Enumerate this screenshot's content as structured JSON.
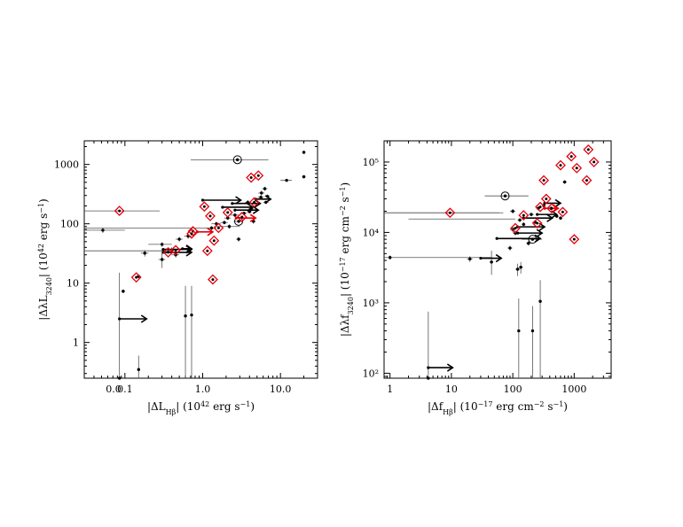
{
  "chart_data": [
    {
      "type": "scatter",
      "xscale": "log",
      "yscale": "log",
      "xlim": [
        0.03,
        30
      ],
      "ylim": [
        0.25,
        2500
      ],
      "xlabel": "|ΔL_Hβ| (10^42 erg s^-1)",
      "ylabel": "|ΔλL_3240| (10^42 erg s^-1)",
      "xticks": [
        {
          "v": 0.1,
          "label": "0.1"
        },
        {
          "v": 1,
          "label": "1.0"
        },
        {
          "v": 10,
          "label": "10.0"
        }
      ],
      "xticks_extra_label": "0.0",
      "yticks": [
        {
          "v": 1,
          "label": "1"
        },
        {
          "v": 10,
          "label": "10"
        },
        {
          "v": 100,
          "label": "100"
        },
        {
          "v": 1000,
          "label": "1000"
        }
      ],
      "colors": {
        "black": "#000000",
        "red": "#e8000b"
      },
      "points": [
        {
          "x": 20,
          "y": 1600,
          "xe": [
            19,
            21
          ],
          "ye": [
            1500,
            1700
          ]
        },
        {
          "x": 20,
          "y": 620,
          "xe": [
            19,
            21
          ],
          "ye": [
            580,
            660
          ]
        },
        {
          "x": 12,
          "y": 540,
          "xe": [
            10,
            14
          ],
          "ye": [
            510,
            570
          ]
        },
        {
          "x": 6.3,
          "y": 390,
          "xe": [
            5.8,
            6.8
          ],
          "ye": [
            360,
            420
          ]
        },
        {
          "x": 5.7,
          "y": 330,
          "xe": [
            5.2,
            6.2
          ],
          "ye": [
            300,
            360
          ]
        },
        {
          "x": 5.6,
          "y": 280,
          "xe": [
            5.1,
            6.1
          ],
          "ye": [
            260,
            300
          ]
        },
        {
          "x": 6.8,
          "y": 290,
          "xe": [
            6.3,
            7.3
          ],
          "ye": [
            270,
            310
          ]
        },
        {
          "x": 6.5,
          "y": 230,
          "xe": [
            6.0,
            7.0
          ],
          "ye": [
            215,
            245
          ]
        },
        {
          "x": 4.0,
          "y": 160,
          "xe": [
            3.7,
            4.3
          ],
          "ye": [
            150,
            170
          ]
        },
        {
          "x": 3.4,
          "y": 150,
          "xe": [
            3.1,
            3.7
          ],
          "ye": [
            140,
            160
          ]
        },
        {
          "x": 2.6,
          "y": 140,
          "xe": [
            2.3,
            2.9
          ],
          "ye": [
            130,
            150
          ]
        },
        {
          "x": 2.1,
          "y": 125,
          "xe": [
            1.9,
            2.3
          ],
          "ye": [
            116,
            134
          ]
        },
        {
          "x": 1.9,
          "y": 105,
          "xe": [
            1.7,
            2.1
          ],
          "ye": [
            98,
            112
          ]
        },
        {
          "x": 2.2,
          "y": 90,
          "xe": [
            1.4,
            3.0
          ],
          "ye": [
            82,
            98
          ]
        },
        {
          "x": 1.5,
          "y": 100,
          "xe": [
            1.3,
            1.7
          ],
          "ye": [
            92,
            108
          ]
        },
        {
          "x": 1.3,
          "y": 85,
          "xe": [
            1.1,
            1.5
          ],
          "ye": [
            78,
            92
          ]
        },
        {
          "x": 0.5,
          "y": 55,
          "xe": [
            0.45,
            0.55
          ],
          "ye": [
            50,
            60
          ]
        },
        {
          "x": 0.65,
          "y": 62,
          "xe": [
            0.58,
            0.72
          ],
          "ye": [
            56,
            68
          ]
        },
        {
          "x": 0.3,
          "y": 45,
          "xe": [
            0.2,
            0.4
          ],
          "ye": [
            41,
            49
          ]
        },
        {
          "x": 0.4,
          "y": 36,
          "xe": [
            0.35,
            0.45
          ],
          "ye": [
            32,
            40
          ]
        },
        {
          "x": 0.45,
          "y": 30,
          "xe": [
            0.4,
            0.5
          ],
          "ye": [
            27,
            33
          ]
        },
        {
          "x": 0.3,
          "y": 25,
          "xe": [
            0.27,
            0.33
          ],
          "ye": [
            18,
            32
          ]
        },
        {
          "x": 0.052,
          "y": 78,
          "xe": [
            0.048,
            0.056
          ],
          "ye": [
            70,
            86
          ]
        },
        {
          "x": 0.18,
          "y": 32,
          "xe": [
            0.16,
            0.2
          ],
          "ye": [
            28,
            36
          ]
        },
        {
          "x": 0.095,
          "y": 7.3,
          "xe": [
            0.09,
            0.1
          ],
          "ye": [
            6.8,
            7.8
          ]
        },
        {
          "x": 0.15,
          "y": 13,
          "xe": [
            0.14,
            0.16
          ],
          "ye": [
            12,
            14
          ]
        },
        {
          "x": 0.6,
          "y": 2.8,
          "xe": [
            0.58,
            0.62
          ],
          "ye": [
            0.25,
            9
          ]
        },
        {
          "x": 0.72,
          "y": 2.9,
          "xe": [
            0.7,
            0.74
          ],
          "ye": [
            0.25,
            9
          ]
        },
        {
          "x": 0.085,
          "y": 0.25,
          "xe": [
            0.085,
            0.085
          ],
          "ye": [
            0.25,
            15
          ]
        },
        {
          "x": 0.15,
          "y": 0.35,
          "xe": [
            0.145,
            0.155
          ],
          "ye": [
            0.25,
            0.6
          ]
        },
        {
          "x": 2.9,
          "y": 55,
          "xe": [
            2.7,
            3.1
          ],
          "ye": [
            50,
            60
          ]
        },
        {
          "x": 4.5,
          "y": 110,
          "xe": [
            4.2,
            4.8
          ],
          "ye": [
            100,
            120
          ]
        },
        {
          "x": 3.8,
          "y": 230,
          "xe": [
            3.5,
            4.1
          ],
          "ye": [
            210,
            250
          ]
        },
        {
          "x": 4.2,
          "y": 180,
          "xe": [
            3.9,
            4.5
          ],
          "ye": [
            165,
            195
          ]
        }
      ],
      "circled": [
        {
          "x": 2.8,
          "y": 1200,
          "xe": [
            0.7,
            7.0
          ],
          "ye": [
            1150,
            1250
          ]
        },
        {
          "x": 2.9,
          "y": 110,
          "xe": [
            2.5,
            3.3
          ],
          "ye": [
            100,
            120
          ]
        }
      ],
      "arrows": [
        {
          "x": 0.085,
          "y": 2.5,
          "to": 0.19,
          "color": "black"
        },
        {
          "x": 0.31,
          "y": 33,
          "to": 0.72,
          "color": "black"
        },
        {
          "x": 0.55,
          "y": 38,
          "to": 0.72,
          "color": "black"
        },
        {
          "x": 0.31,
          "y": 37,
          "to": 0.72,
          "color": "black"
        },
        {
          "x": 1.0,
          "y": 250,
          "to": 3.1,
          "color": "black"
        },
        {
          "x": 4.8,
          "y": 260,
          "to": 7.5,
          "color": "black"
        },
        {
          "x": 2.4,
          "y": 220,
          "to": 5.5,
          "color": "black"
        },
        {
          "x": 1.8,
          "y": 190,
          "to": 4.4,
          "color": "black"
        },
        {
          "x": 2.6,
          "y": 170,
          "to": 5.2,
          "color": "black"
        },
        {
          "x": 2.7,
          "y": 125,
          "to": 4.8,
          "color": "red"
        },
        {
          "x": 0.85,
          "y": 73,
          "to": 1.35,
          "color": "red"
        }
      ],
      "hlines": [
        {
          "x1": 0.03,
          "x2": 0.1,
          "y": 78
        },
        {
          "x1": 0.03,
          "x2": 0.4,
          "y": 35
        },
        {
          "x1": 0.03,
          "x2": 1.5,
          "y": 85
        }
      ],
      "red_diamonds": [
        {
          "x": 0.085,
          "y": 165,
          "xe": [
            0.03,
            0.28
          ]
        },
        {
          "x": 0.14,
          "y": 12.5
        },
        {
          "x": 0.36,
          "y": 33
        },
        {
          "x": 0.45,
          "y": 36
        },
        {
          "x": 0.75,
          "y": 75
        },
        {
          "x": 0.72,
          "y": 68
        },
        {
          "x": 1.05,
          "y": 195
        },
        {
          "x": 1.25,
          "y": 135
        },
        {
          "x": 1.4,
          "y": 52
        },
        {
          "x": 1.15,
          "y": 35
        },
        {
          "x": 1.35,
          "y": 11.5
        },
        {
          "x": 1.6,
          "y": 85
        },
        {
          "x": 2.1,
          "y": 155
        },
        {
          "x": 3.2,
          "y": 130
        },
        {
          "x": 4.6,
          "y": 230
        },
        {
          "x": 4.2,
          "y": 600
        },
        {
          "x": 5.2,
          "y": 650
        }
      ]
    },
    {
      "type": "scatter",
      "xscale": "log",
      "yscale": "log",
      "xlim": [
        0.8,
        4000
      ],
      "ylim": [
        85,
        200000
      ],
      "xlabel": "|Δf_Hβ| (10^-17 erg cm^-2 s^-1)",
      "ylabel": "|Δλf_3240| (10^-17 erg cm^-2 s^-1)",
      "xticks": [
        {
          "v": 1,
          "label": "1"
        },
        {
          "v": 10,
          "label": "10"
        },
        {
          "v": 100,
          "label": "100"
        },
        {
          "v": 1000,
          "label": "1000"
        }
      ],
      "yticks": [
        {
          "v": 100,
          "label": "10²"
        },
        {
          "v": 1000,
          "label": "10³"
        },
        {
          "v": 10000,
          "label": "10⁴"
        },
        {
          "v": 100000,
          "label": "10⁵"
        }
      ],
      "colors": {
        "black": "#000000",
        "red": "#e8000b"
      },
      "points": [
        {
          "x": 1.0,
          "y": 4400,
          "xe": [
            0.95,
            1.05
          ],
          "ye": [
            4100,
            4700
          ]
        },
        {
          "x": 20,
          "y": 4200,
          "xe": [
            18,
            22
          ],
          "ye": [
            3800,
            4600
          ]
        },
        {
          "x": 45,
          "y": 3800,
          "xe": [
            42,
            48
          ],
          "ye": [
            2500,
            5500
          ]
        },
        {
          "x": 120,
          "y": 3000,
          "xe": [
            110,
            130
          ],
          "ye": [
            2400,
            3600
          ]
        },
        {
          "x": 135,
          "y": 3200,
          "xe": [
            125,
            145
          ],
          "ye": [
            2600,
            3800
          ]
        },
        {
          "x": 125,
          "y": 400,
          "xe": [
            123,
            127
          ],
          "ye": [
            85,
            1150
          ]
        },
        {
          "x": 210,
          "y": 400,
          "xe": [
            208,
            212
          ],
          "ye": [
            85,
            900
          ]
        },
        {
          "x": 280,
          "y": 1050,
          "xe": [
            270,
            290
          ],
          "ye": [
            85,
            2100
          ]
        },
        {
          "x": 4.2,
          "y": 85,
          "xe": [
            4.2,
            4.2
          ],
          "ye": [
            85,
            750
          ]
        },
        {
          "x": 100,
          "y": 11000,
          "xe": [
            90,
            110
          ],
          "ye": [
            10000,
            12000
          ]
        },
        {
          "x": 110,
          "y": 9800,
          "xe": [
            100,
            120
          ],
          "ye": [
            9000,
            10600
          ]
        },
        {
          "x": 130,
          "y": 15000,
          "xe": [
            120,
            140
          ],
          "ye": [
            14000,
            16000
          ]
        },
        {
          "x": 150,
          "y": 13000,
          "xe": [
            140,
            160
          ],
          "ye": [
            12000,
            14000
          ]
        },
        {
          "x": 200,
          "y": 18000,
          "xe": [
            180,
            220
          ],
          "ye": [
            17000,
            19000
          ]
        },
        {
          "x": 260,
          "y": 22000,
          "xe": [
            240,
            280
          ],
          "ye": [
            20500,
            23500
          ]
        },
        {
          "x": 320,
          "y": 24000,
          "xe": [
            300,
            340
          ],
          "ye": [
            22500,
            25500
          ]
        },
        {
          "x": 420,
          "y": 22000,
          "xe": [
            390,
            450
          ],
          "ye": [
            20500,
            23500
          ]
        },
        {
          "x": 520,
          "y": 17000,
          "xe": [
            480,
            560
          ],
          "ye": [
            16000,
            18000
          ]
        },
        {
          "x": 700,
          "y": 52000,
          "xe": [
            650,
            750
          ],
          "ye": [
            49000,
            55000
          ]
        },
        {
          "x": 600,
          "y": 16000,
          "xe": [
            560,
            640
          ],
          "ye": [
            15000,
            17000
          ]
        },
        {
          "x": 180,
          "y": 7000,
          "xe": [
            165,
            195
          ],
          "ye": [
            6500,
            7500
          ]
        },
        {
          "x": 90,
          "y": 6000,
          "xe": [
            82,
            98
          ],
          "ye": [
            5500,
            6500
          ]
        },
        {
          "x": 100,
          "y": 20000,
          "xe": [
            90,
            110
          ],
          "ye": [
            18500,
            21500
          ]
        },
        {
          "x": 230,
          "y": 14000,
          "xe": [
            210,
            250
          ],
          "ye": [
            13000,
            15000
          ]
        }
      ],
      "circled": [
        {
          "x": 75,
          "y": 33000,
          "xe": [
            35,
            180
          ],
          "ye": [
            31500,
            34500
          ]
        },
        {
          "x": 210,
          "y": 8000,
          "xe": [
            140,
            300
          ],
          "ye": [
            7600,
            8400
          ]
        }
      ],
      "arrows": [
        {
          "x": 4.2,
          "y": 120,
          "to": 10.5,
          "color": "black"
        },
        {
          "x": 30,
          "y": 4300,
          "to": 65,
          "color": "black"
        },
        {
          "x": 55,
          "y": 8200,
          "to": 280,
          "color": "black"
        },
        {
          "x": 120,
          "y": 9800,
          "to": 300,
          "color": "black"
        },
        {
          "x": 120,
          "y": 12000,
          "to": 330,
          "color": "black"
        },
        {
          "x": 150,
          "y": 16000,
          "to": 440,
          "color": "black"
        },
        {
          "x": 250,
          "y": 18000,
          "to": 520,
          "color": "black"
        },
        {
          "x": 330,
          "y": 26000,
          "to": 600,
          "color": "black"
        },
        {
          "x": 330,
          "y": 22000,
          "to": 550,
          "color": "red"
        }
      ],
      "hlines": [
        {
          "x1": 0.8,
          "x2": 45,
          "y": 4400
        },
        {
          "x1": 0.8,
          "x2": 60,
          "y": 19000
        },
        {
          "x1": 2,
          "x2": 110,
          "y": 15500
        }
      ],
      "red_diamonds": [
        {
          "x": 9.5,
          "y": 19000,
          "xe": [
            0.8,
            70
          ]
        },
        {
          "x": 110,
          "y": 11500
        },
        {
          "x": 150,
          "y": 17500
        },
        {
          "x": 250,
          "y": 13500
        },
        {
          "x": 280,
          "y": 23000
        },
        {
          "x": 320,
          "y": 55000
        },
        {
          "x": 350,
          "y": 30000
        },
        {
          "x": 430,
          "y": 22000
        },
        {
          "x": 600,
          "y": 90000
        },
        {
          "x": 650,
          "y": 19500
        },
        {
          "x": 900,
          "y": 120000
        },
        {
          "x": 1100,
          "y": 82000
        },
        {
          "x": 1600,
          "y": 55000
        },
        {
          "x": 1700,
          "y": 150000
        },
        {
          "x": 2100,
          "y": 100000
        },
        {
          "x": 1000,
          "y": 8000
        }
      ]
    }
  ]
}
